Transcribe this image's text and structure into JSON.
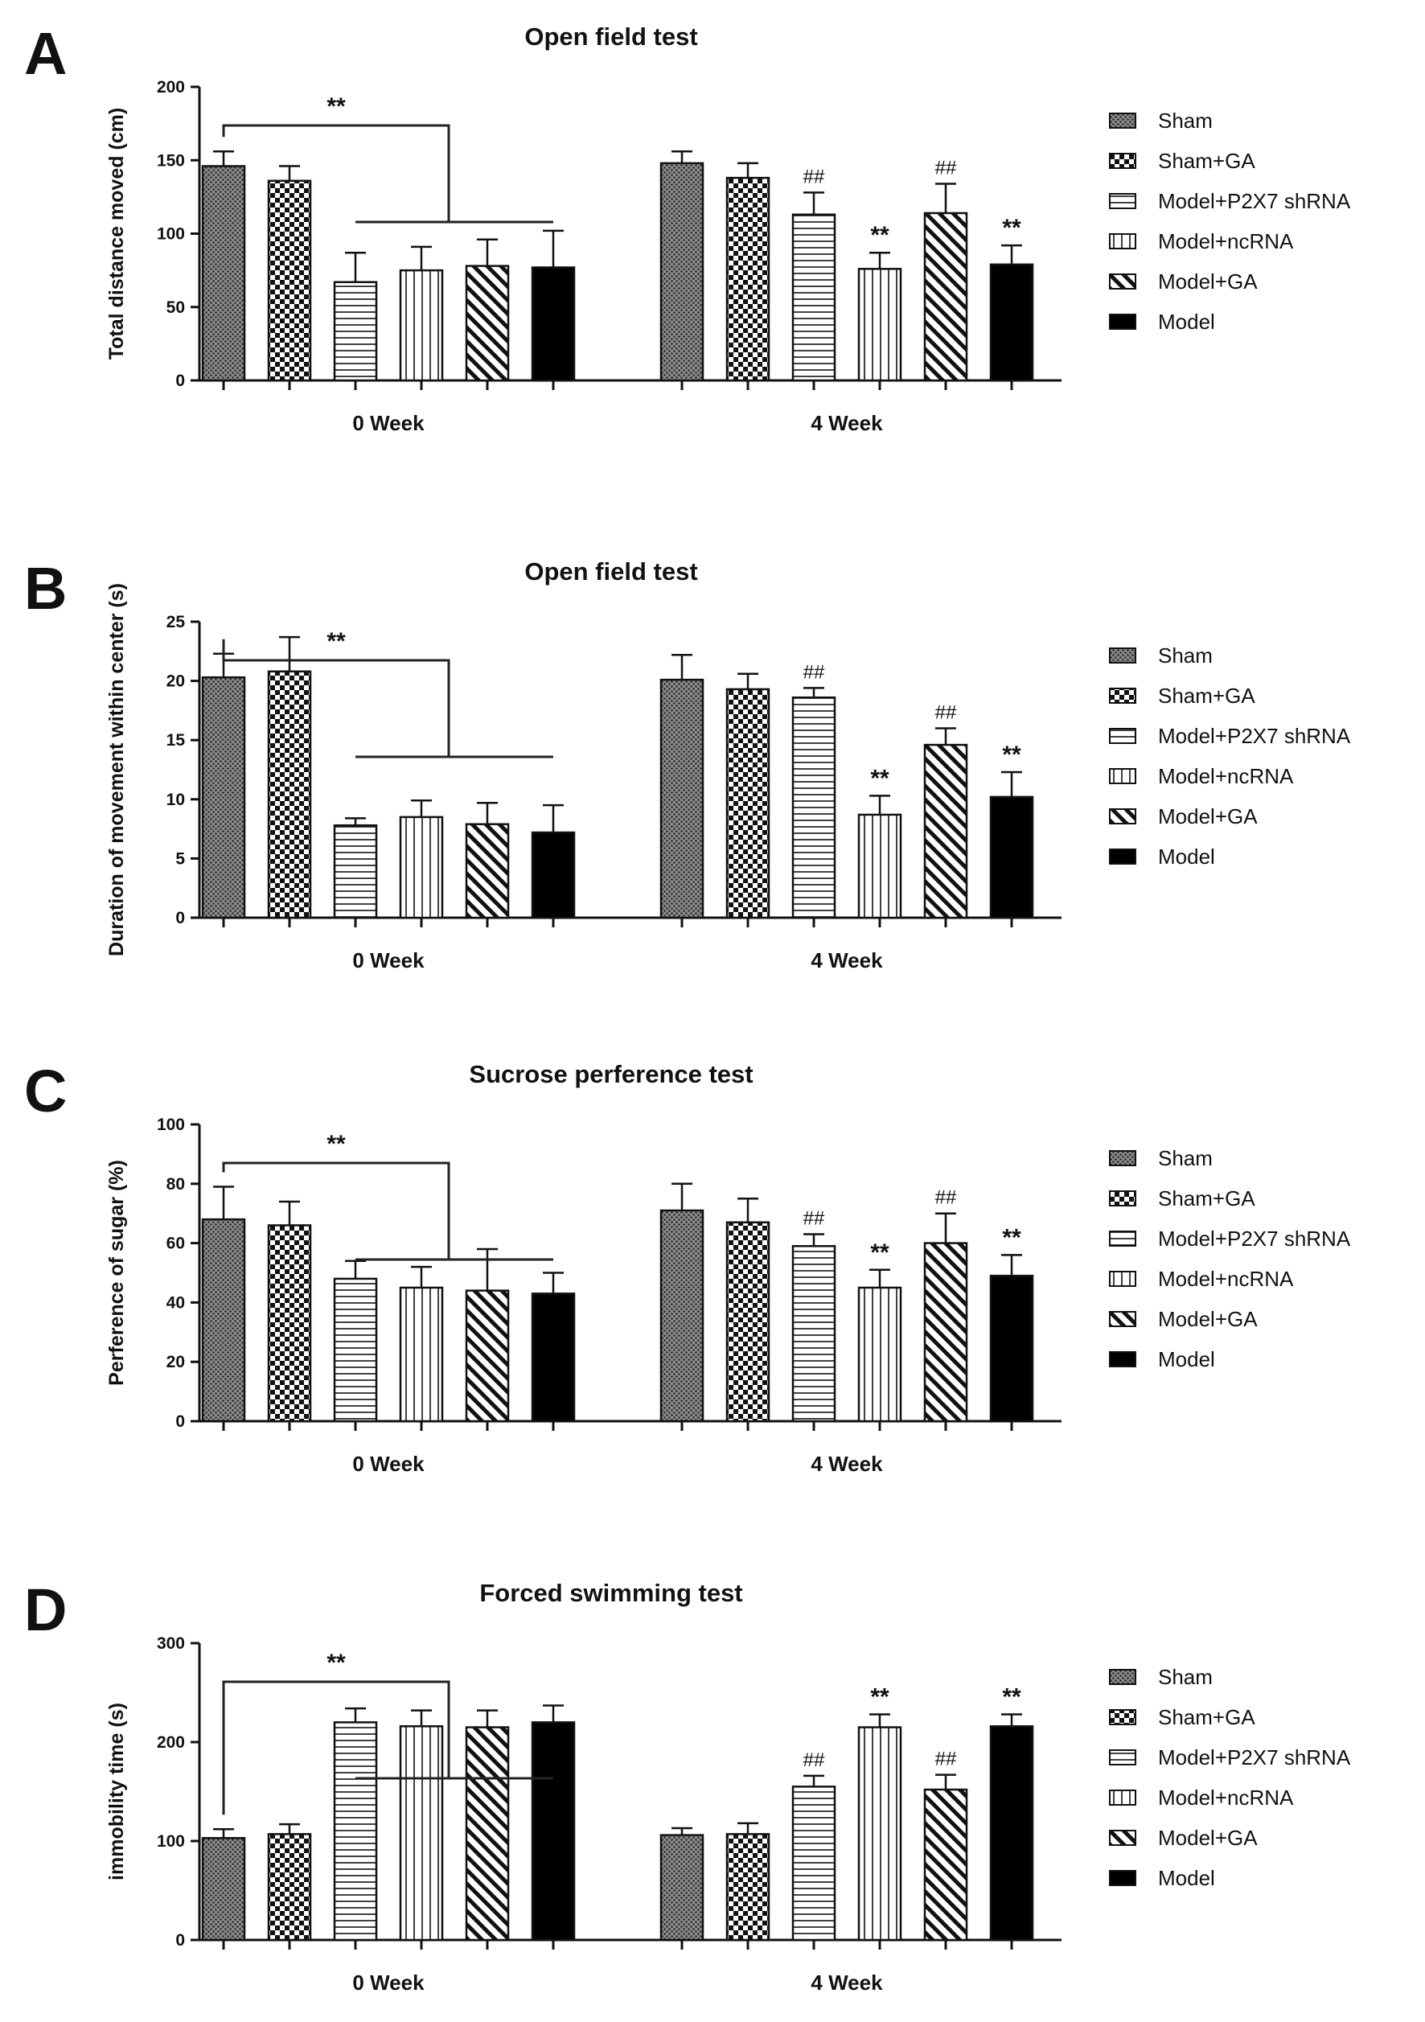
{
  "legend_entries": [
    {
      "name": "Sham",
      "pattern": "pat-dots"
    },
    {
      "name": "Sham+GA",
      "pattern": "pat-check"
    },
    {
      "name": "Model+P2X7 shRNA",
      "pattern": "pat-hlines"
    },
    {
      "name": "Model+ncRNA",
      "pattern": "pat-vlines"
    },
    {
      "name": "Model+GA",
      "pattern": "pat-diag"
    },
    {
      "name": "Model",
      "pattern": "pat-black"
    }
  ],
  "chart_data": [
    {
      "type": "bar",
      "panel_letter": "A",
      "title": "Open field test",
      "xlabel": "",
      "ylabel": "Total distance moved (cm)",
      "ylim": [
        0,
        200
      ],
      "yticks": [
        0,
        50,
        100,
        150,
        200
      ],
      "categories": [
        "0 Week",
        "4 Week"
      ],
      "series": [
        {
          "name": "Sham",
          "values": [
            146,
            148
          ],
          "errors": [
            10,
            8
          ]
        },
        {
          "name": "Sham+GA",
          "values": [
            136,
            138
          ],
          "errors": [
            10,
            10
          ]
        },
        {
          "name": "Model+P2X7 shRNA",
          "values": [
            67,
            113
          ],
          "errors": [
            20,
            15
          ]
        },
        {
          "name": "Model+ncRNA",
          "values": [
            75,
            76
          ],
          "errors": [
            16,
            11
          ]
        },
        {
          "name": "Model+GA",
          "values": [
            78,
            114
          ],
          "errors": [
            18,
            20
          ]
        },
        {
          "name": "Model",
          "values": [
            77,
            79
          ],
          "errors": [
            25,
            13
          ]
        }
      ],
      "group_annotation": "**",
      "annotations": [
        [],
        [
          "",
          "",
          "##",
          "**",
          "##",
          "**"
        ]
      ]
    },
    {
      "type": "bar",
      "panel_letter": "B",
      "title": "Open field test",
      "xlabel": "",
      "ylabel": "Duration of movement within center (s)",
      "ylim": [
        0,
        25
      ],
      "yticks": [
        0,
        5,
        10,
        15,
        20,
        25
      ],
      "categories": [
        "0 Week",
        "4 Week"
      ],
      "series": [
        {
          "name": "Sham",
          "values": [
            20.3,
            20.1
          ],
          "errors": [
            2.0,
            2.1
          ]
        },
        {
          "name": "Sham+GA",
          "values": [
            20.8,
            19.3
          ],
          "errors": [
            2.9,
            1.3
          ]
        },
        {
          "name": "Model+P2X7 shRNA",
          "values": [
            7.8,
            18.6
          ],
          "errors": [
            0.6,
            0.8
          ]
        },
        {
          "name": "Model+ncRNA",
          "values": [
            8.5,
            8.7
          ],
          "errors": [
            1.4,
            1.6
          ]
        },
        {
          "name": "Model+GA",
          "values": [
            7.9,
            14.6
          ],
          "errors": [
            1.8,
            1.4
          ]
        },
        {
          "name": "Model",
          "values": [
            7.2,
            10.2
          ],
          "errors": [
            2.3,
            2.1
          ]
        }
      ],
      "group_annotation": "**",
      "annotations": [
        [],
        [
          "",
          "",
          "##",
          "**",
          "##",
          "**"
        ]
      ]
    },
    {
      "type": "bar",
      "panel_letter": "C",
      "title": "Sucrose perference test",
      "xlabel": "",
      "ylabel": "Perference of sugar (%)",
      "ylim": [
        0,
        100
      ],
      "yticks": [
        0,
        20,
        40,
        60,
        80,
        100
      ],
      "categories": [
        "0 Week",
        "4 Week"
      ],
      "series": [
        {
          "name": "Sham",
          "values": [
            68,
            71
          ],
          "errors": [
            11,
            9
          ]
        },
        {
          "name": "Sham+GA",
          "values": [
            66,
            67
          ],
          "errors": [
            8,
            8
          ]
        },
        {
          "name": "Model+P2X7 shRNA",
          "values": [
            48,
            59
          ],
          "errors": [
            6,
            4
          ]
        },
        {
          "name": "Model+ncRNA",
          "values": [
            45,
            45
          ],
          "errors": [
            7,
            6
          ]
        },
        {
          "name": "Model+GA",
          "values": [
            44,
            60
          ],
          "errors": [
            14,
            10
          ]
        },
        {
          "name": "Model",
          "values": [
            43,
            49
          ],
          "errors": [
            7,
            7
          ]
        }
      ],
      "group_annotation": "**",
      "annotations": [
        [],
        [
          "",
          "",
          "##",
          "**",
          "##",
          "**"
        ]
      ]
    },
    {
      "type": "bar",
      "panel_letter": "D",
      "title": "Forced swimming test",
      "xlabel": "",
      "ylabel": "immobility time (s)",
      "ylim": [
        0,
        300
      ],
      "yticks": [
        0,
        100,
        200,
        300
      ],
      "categories": [
        "0 Week",
        "4 Week"
      ],
      "series": [
        {
          "name": "Sham",
          "values": [
            103,
            106
          ],
          "errors": [
            9,
            7
          ]
        },
        {
          "name": "Sham+GA",
          "values": [
            107,
            107
          ],
          "errors": [
            10,
            11
          ]
        },
        {
          "name": "Model+P2X7 shRNA",
          "values": [
            220,
            155
          ],
          "errors": [
            14,
            11
          ]
        },
        {
          "name": "Model+ncRNA",
          "values": [
            216,
            215
          ],
          "errors": [
            16,
            13
          ]
        },
        {
          "name": "Model+GA",
          "values": [
            215,
            152
          ],
          "errors": [
            17,
            15
          ]
        },
        {
          "name": "Model",
          "values": [
            220,
            216
          ],
          "errors": [
            17,
            12
          ]
        }
      ],
      "group_annotation": "**",
      "annotations": [
        [],
        [
          "",
          "",
          "##",
          "**",
          "##",
          "**"
        ]
      ]
    }
  ]
}
